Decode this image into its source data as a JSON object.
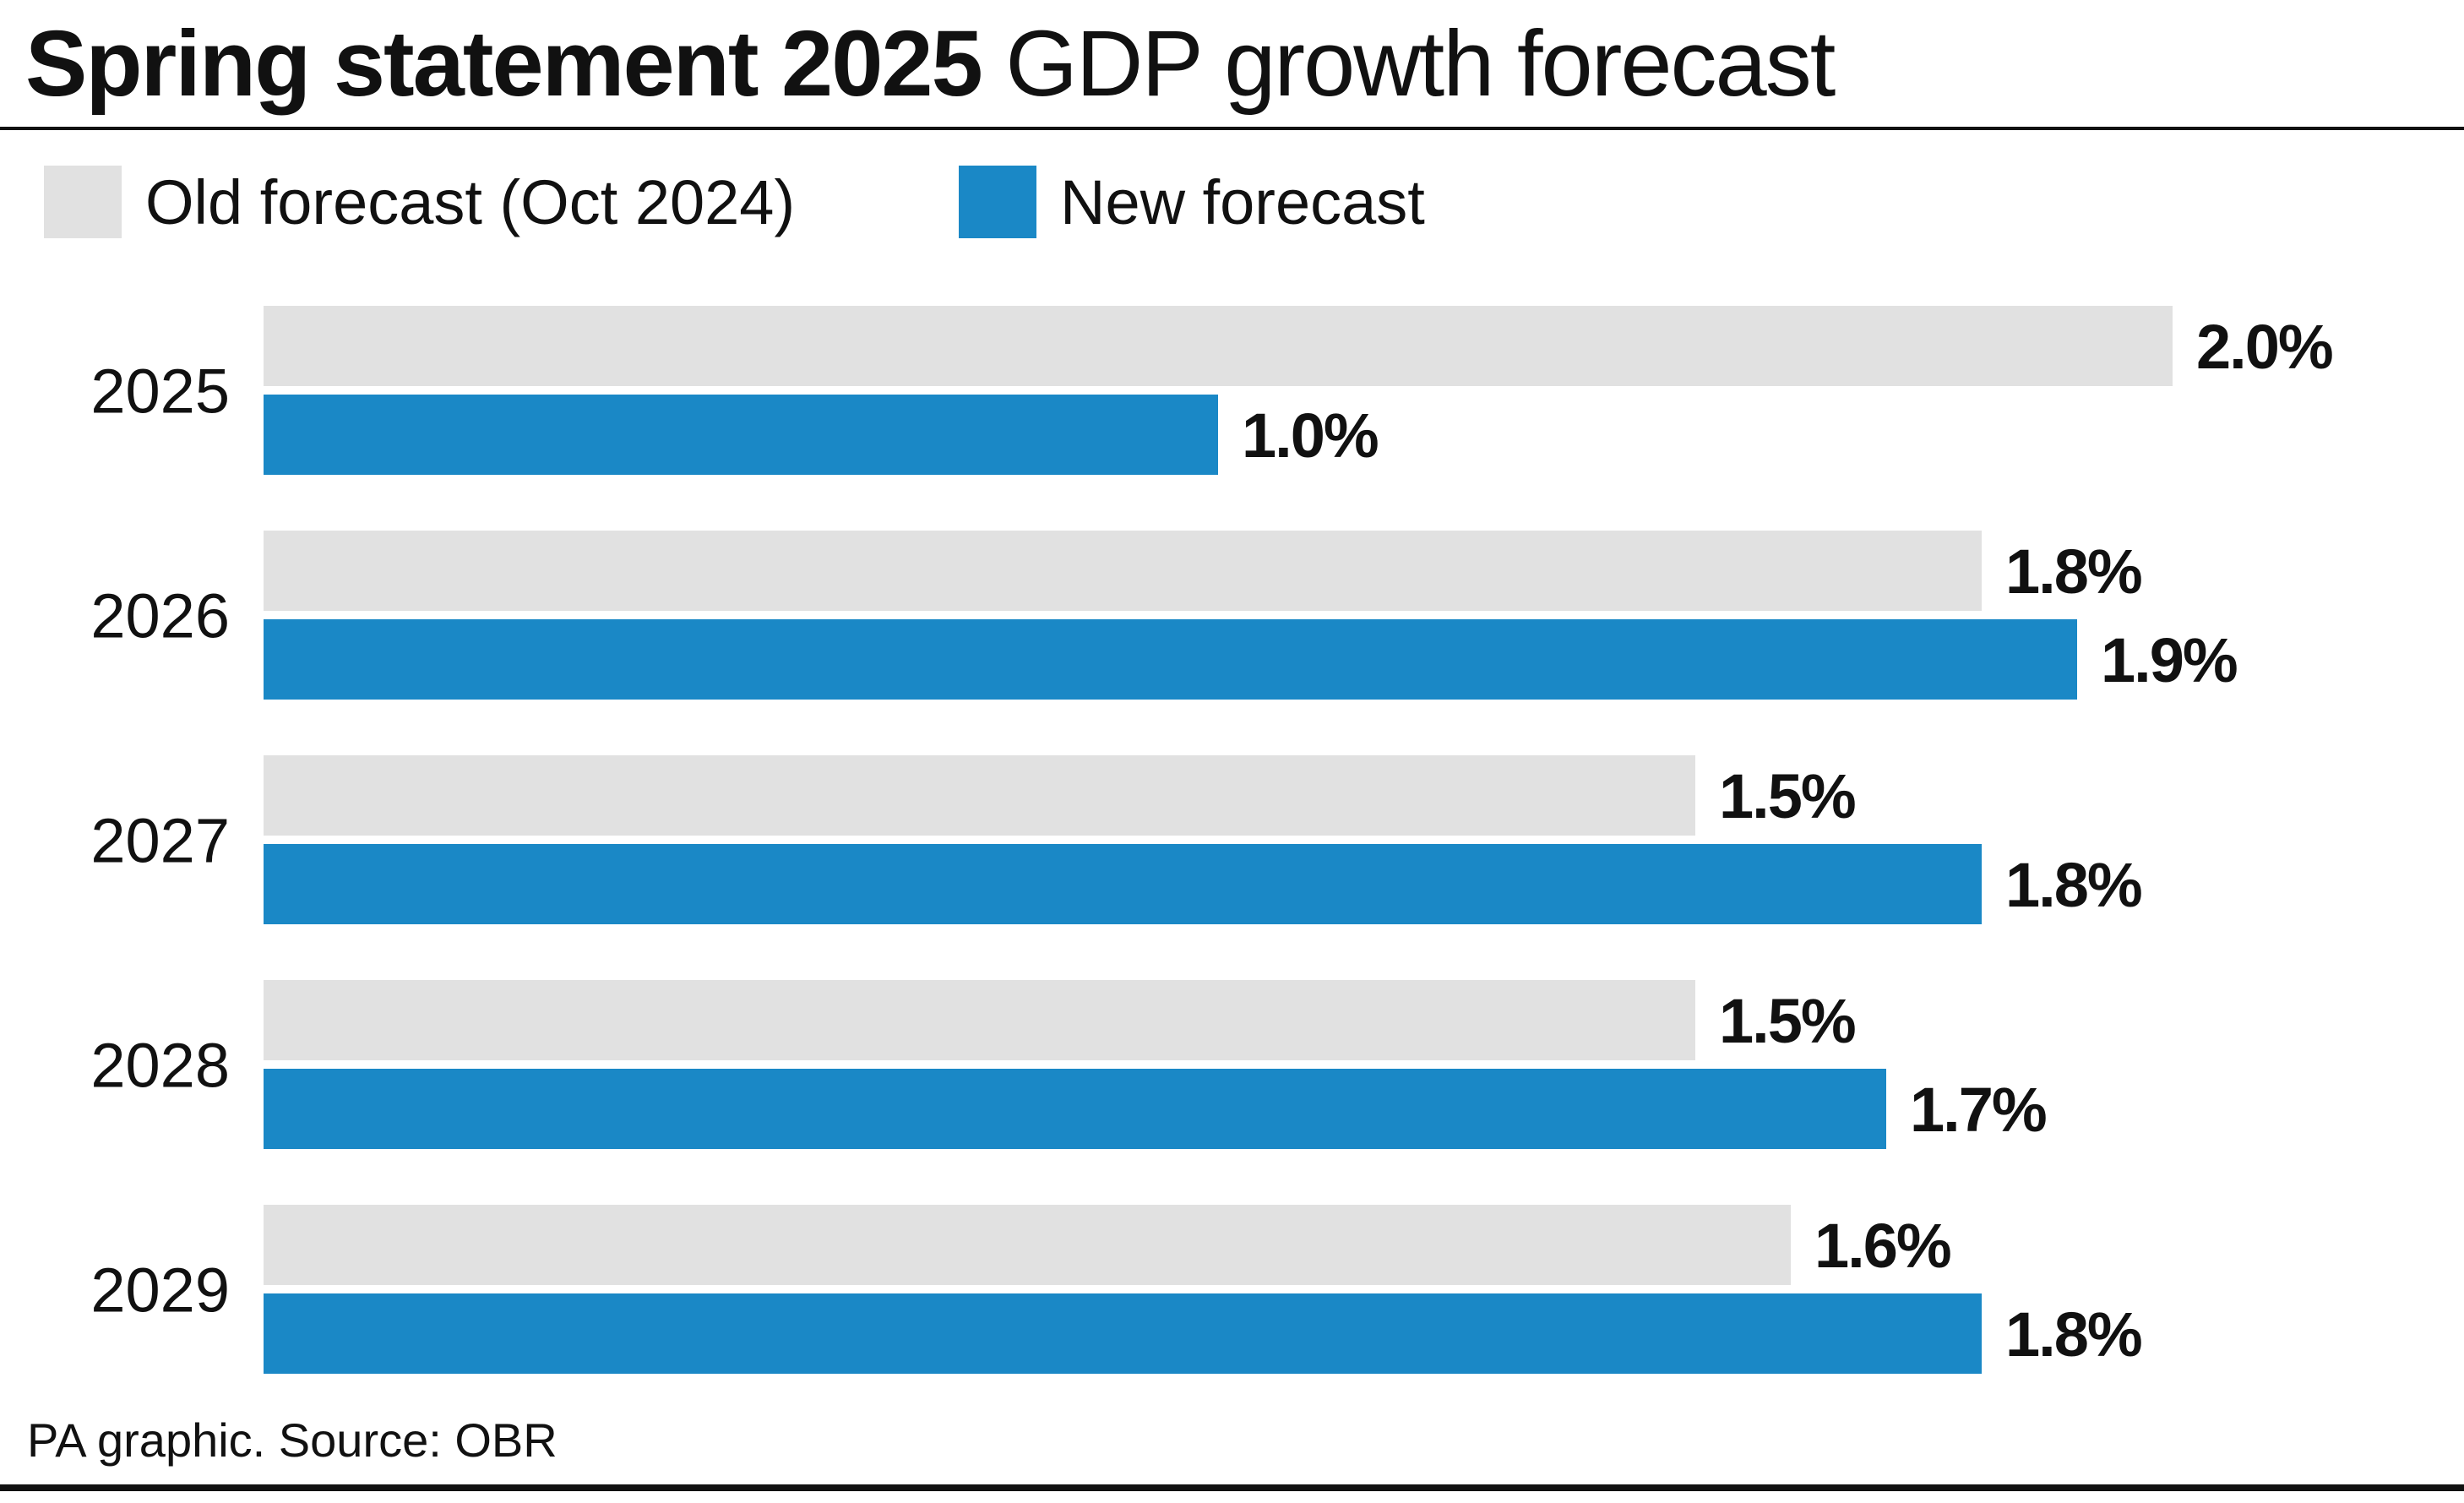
{
  "title": {
    "bold": "Spring statement 2025",
    "light": "GDP growth forecast"
  },
  "legend": {
    "old": {
      "label": "Old forecast (Oct 2024)",
      "color": "#e1e1e1"
    },
    "new": {
      "label": "New forecast",
      "color": "#1a88c6"
    }
  },
  "source": "PA graphic. Source: OBR",
  "chart_data": {
    "type": "bar",
    "orientation": "horizontal",
    "title": "Spring statement 2025 GDP growth forecast",
    "categories": [
      "2025",
      "2026",
      "2027",
      "2028",
      "2029"
    ],
    "series": [
      {
        "name": "Old forecast (Oct 2024)",
        "color": "#e1e1e1",
        "values": [
          2.0,
          1.8,
          1.5,
          1.5,
          1.6
        ],
        "labels": [
          "2.0%",
          "1.8%",
          "1.5%",
          "1.5%",
          "1.6%"
        ]
      },
      {
        "name": "New forecast",
        "color": "#1a88c6",
        "values": [
          1.0,
          1.9,
          1.8,
          1.7,
          1.8
        ],
        "labels": [
          "1.0%",
          "1.9%",
          "1.8%",
          "1.7%",
          "1.8%"
        ]
      }
    ],
    "xlabel": "",
    "ylabel": "",
    "xlim": [
      0,
      2.0
    ],
    "unit": "%",
    "grid": false,
    "legend_position": "top-left"
  }
}
